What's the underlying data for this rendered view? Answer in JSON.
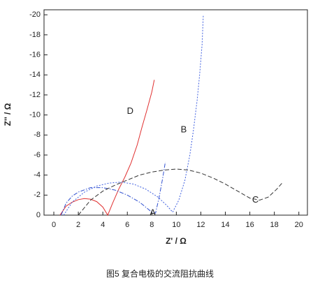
{
  "chart_data": {
    "type": "line",
    "x_label": "Z' / Ω",
    "y_label": "Z'' / Ω",
    "caption": "图5 复合电极的交流阻抗曲线",
    "xlim": [
      -0.8,
      20.7
    ],
    "ylim": [
      0,
      -20.5
    ],
    "xticks": [
      0,
      2,
      4,
      6,
      8,
      10,
      12,
      14,
      16,
      18,
      20
    ],
    "yticks": [
      0,
      -2,
      -4,
      -6,
      -8,
      -10,
      -12,
      -14,
      -16,
      -18,
      -20
    ],
    "series": [
      {
        "name": "D",
        "color": "#e03030",
        "style": "solid",
        "x": [
          0.5,
          1,
          1.5,
          2,
          2.5,
          3,
          3.5,
          4,
          4.4,
          4.8,
          5.3,
          5.8,
          6.3,
          6.8,
          7.2,
          7.6,
          8.0,
          8.2
        ],
        "values": [
          0,
          -0.9,
          -1.3,
          -1.55,
          -1.65,
          -1.6,
          -1.35,
          -0.8,
          0,
          -1.2,
          -2.6,
          -3.8,
          -5.2,
          -7,
          -8.8,
          -10.5,
          -12.3,
          -13.5
        ]
      },
      {
        "name": "A",
        "color": "#3050d0",
        "style": "dashdot",
        "x": [
          0.6,
          1,
          1.5,
          2,
          3,
          4,
          5,
          6,
          7,
          7.5,
          8,
          8.3,
          8.6,
          8.9,
          9.1
        ],
        "values": [
          0,
          -1.2,
          -1.9,
          -2.3,
          -2.75,
          -2.75,
          -2.5,
          -2,
          -1.3,
          -0.8,
          -0.3,
          -0.2,
          -1.8,
          -3.8,
          -5.3
        ]
      },
      {
        "name": "B",
        "color": "#4060e0",
        "style": "dotted",
        "x": [
          0.8,
          1.5,
          2.5,
          3.5,
          4.5,
          5.5,
          6.5,
          7.5,
          8.5,
          9.2,
          9.7,
          10.2,
          10.7,
          11.1,
          11.4,
          11.7,
          11.9,
          12.1,
          12.2
        ],
        "values": [
          0,
          -1.3,
          -2.3,
          -2.9,
          -3.2,
          -3.3,
          -3.1,
          -2.6,
          -1.8,
          -1,
          -0.3,
          -1.5,
          -3.5,
          -6,
          -8.5,
          -11.5,
          -14,
          -17,
          -20
        ]
      },
      {
        "name": "C",
        "color": "#333333",
        "style": "dashed",
        "x": [
          2,
          3,
          4,
          5,
          6,
          7,
          8,
          9,
          10,
          11,
          12,
          13,
          14,
          15,
          16,
          16.8,
          17.5,
          18.2,
          18.7
        ],
        "values": [
          0,
          -1.5,
          -2.4,
          -3.0,
          -3.5,
          -4.0,
          -4.3,
          -4.5,
          -4.6,
          -4.5,
          -4.2,
          -3.7,
          -3.1,
          -2.4,
          -1.7,
          -1.5,
          -1.8,
          -2.6,
          -3.3
        ]
      }
    ]
  }
}
